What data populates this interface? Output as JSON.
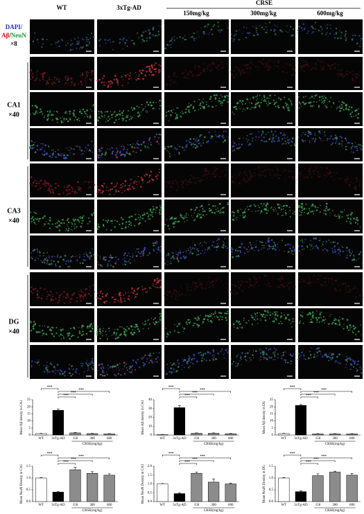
{
  "header": {
    "columns": [
      "WT",
      "3xTg-AD"
    ],
    "group": "CRSE",
    "doses": [
      "150mg/kg",
      "300mg/kg",
      "600mg/kg"
    ]
  },
  "stain_label": {
    "dapi": "DAPI/",
    "abeta": "Aβ",
    "slash": "/",
    "neun": "NeuN",
    "mag": "×8"
  },
  "row_labels": [
    {
      "region": "CA1",
      "mag": "×40"
    },
    {
      "region": "CA3",
      "mag": "×40"
    },
    {
      "region": "DG",
      "mag": "×40"
    }
  ],
  "chart_data": [
    {
      "type": "bar",
      "ylabel": "Mean Aβ density in CA1",
      "categories": [
        "WT",
        "3xTg-AD",
        "150",
        "300",
        "600"
      ],
      "xlabel": "CRSE(mg/kg)",
      "values": [
        1,
        17.5,
        1.5,
        1,
        0.8
      ],
      "errors": [
        0.2,
        0.8,
        0.3,
        0.2,
        0.2
      ],
      "colors": [
        "#ffffff",
        "#000000",
        "#8c8c8c",
        "#8c8c8c",
        "#8c8c8c"
      ],
      "ylim": [
        0,
        25
      ],
      "yticks": [
        0,
        5,
        10,
        15,
        20,
        25
      ],
      "annotations": [
        "***",
        "***",
        "***",
        "***"
      ]
    },
    {
      "type": "bar",
      "ylabel": "Mean Aβ density in CA3",
      "categories": [
        "WT",
        "3xTg-AD",
        "150",
        "300",
        "600"
      ],
      "xlabel": "CRSE(mg/kg)",
      "values": [
        0.5,
        31,
        2,
        2,
        1.5
      ],
      "errors": [
        0.2,
        2.5,
        0.4,
        0.4,
        0.3
      ],
      "colors": [
        "#ffffff",
        "#000000",
        "#8c8c8c",
        "#8c8c8c",
        "#8c8c8c"
      ],
      "ylim": [
        0,
        40
      ],
      "yticks": [
        0,
        10,
        20,
        30,
        40
      ],
      "annotations": [
        "***",
        "***",
        "***",
        "***"
      ]
    },
    {
      "type": "bar",
      "ylabel": "Mean Aβ density in DG",
      "categories": [
        "WT",
        "3xTg-AD",
        "150",
        "300",
        "600"
      ],
      "xlabel": "CRSE(mg/kg)",
      "values": [
        1,
        21,
        0.8,
        0.8,
        0.8
      ],
      "errors": [
        0.2,
        0.6,
        0.2,
        0.2,
        0.2
      ],
      "colors": [
        "#ffffff",
        "#000000",
        "#8c8c8c",
        "#8c8c8c",
        "#8c8c8c"
      ],
      "ylim": [
        0,
        25
      ],
      "yticks": [
        0,
        5,
        10,
        15,
        20,
        25
      ],
      "annotations": [
        "***",
        "***",
        "***",
        "***"
      ]
    },
    {
      "type": "bar",
      "ylabel": "Mean NeuN Density in CA1",
      "categories": [
        "WT",
        "3xTg-AD",
        "150",
        "300",
        "600"
      ],
      "xlabel": "CRSE(mg/kg)",
      "values": [
        1.0,
        0.4,
        1.35,
        1.2,
        1.12
      ],
      "errors": [
        0.02,
        0.03,
        0.1,
        0.07,
        0.06
      ],
      "colors": [
        "#ffffff",
        "#000000",
        "#8c8c8c",
        "#8c8c8c",
        "#8c8c8c"
      ],
      "ylim": [
        0,
        1.5
      ],
      "yticks": [
        {
          "value": 0,
          "label": "0.0"
        },
        0.5,
        {
          "value": 1,
          "label": "1.0"
        },
        1.5
      ],
      "annotations": [
        "***",
        "***",
        "***",
        "***"
      ]
    },
    {
      "type": "bar",
      "ylabel": "Mean NeuN Density in CA3",
      "categories": [
        "WT",
        "3xTg-AD",
        "150",
        "300",
        "600"
      ],
      "xlabel": "CRSE(mg/kg)",
      "values": [
        1.0,
        0.45,
        1.6,
        1.1,
        1.0
      ],
      "errors": [
        0.02,
        0.05,
        0.06,
        0.18,
        0.04
      ],
      "colors": [
        "#ffffff",
        "#000000",
        "#8c8c8c",
        "#8c8c8c",
        "#8c8c8c"
      ],
      "ylim": [
        0,
        2
      ],
      "yticks": [
        {
          "value": 0,
          "label": "0.0"
        },
        0.5,
        {
          "value": 1,
          "label": "1.0"
        },
        1.5,
        {
          "value": 2,
          "label": "2.0"
        }
      ],
      "annotations": [
        "***",
        "***",
        "***",
        "***"
      ]
    },
    {
      "type": "bar",
      "ylabel": "Mean NeuN Density in DG",
      "categories": [
        "WT",
        "3xTg-AD",
        "150",
        "300",
        "600"
      ],
      "xlabel": "CRSE(mg/kg)",
      "values": [
        1.0,
        0.42,
        1.1,
        1.25,
        1.12
      ],
      "errors": [
        0.02,
        0.03,
        0.08,
        0.04,
        0.07
      ],
      "colors": [
        "#ffffff",
        "#000000",
        "#8c8c8c",
        "#8c8c8c",
        "#8c8c8c"
      ],
      "ylim": [
        0,
        1.5
      ],
      "yticks": [
        {
          "value": 0,
          "label": "0.0"
        },
        0.5,
        {
          "value": 1,
          "label": "1.0"
        },
        1.5
      ],
      "annotations": [
        "***",
        "***",
        "***",
        "***"
      ]
    }
  ]
}
